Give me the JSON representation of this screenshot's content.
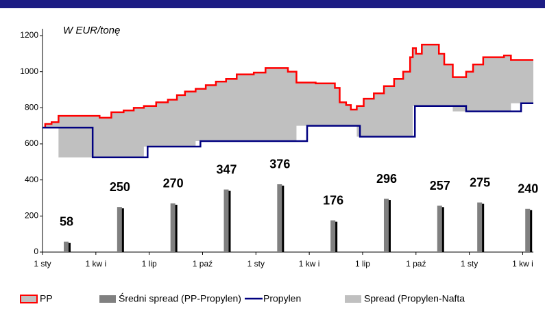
{
  "chart_data": {
    "type": "combo",
    "annotation": "W EUR/tonę",
    "xlim": [
      0,
      9.2
    ],
    "xticks": [
      {
        "value": 0,
        "label": "1 sty"
      },
      {
        "value": 1,
        "label": "1 kw i"
      },
      {
        "value": 2,
        "label": "1 lip"
      },
      {
        "value": 3,
        "label": "1 paź"
      },
      {
        "value": 4,
        "label": "1 sty"
      },
      {
        "value": 5,
        "label": "1 kw i"
      },
      {
        "value": 6,
        "label": "1 lip"
      },
      {
        "value": 7,
        "label": "1 paź"
      },
      {
        "value": 8,
        "label": "1 sty"
      },
      {
        "value": 9,
        "label": "1 kw i"
      }
    ],
    "ylim": [
      0,
      1200
    ],
    "yticks": [
      0,
      200,
      400,
      600,
      800,
      1000,
      1200
    ],
    "grid": false,
    "legend": "bottom",
    "series": [
      {
        "name": "PP",
        "type": "line",
        "drawstyle": "steps-post",
        "color": "#ff0000",
        "x": [
          0,
          0.05,
          0.17,
          0.3,
          1.07,
          1.29,
          1.52,
          1.71,
          1.9,
          2.13,
          2.35,
          2.52,
          2.67,
          2.87,
          3.06,
          3.25,
          3.44,
          3.64,
          3.96,
          4.18,
          4.6,
          4.76,
          5.12,
          5.48,
          5.57,
          5.69,
          5.78,
          5.89,
          6.02,
          6.21,
          6.4,
          6.59,
          6.76,
          6.89,
          6.94,
          7.0,
          7.11,
          7.43,
          7.53,
          7.69,
          7.94,
          8.07,
          8.26,
          8.65,
          8.78,
          9.2
        ],
        "values": [
          690,
          710,
          720,
          755,
          745,
          775,
          785,
          800,
          810,
          830,
          845,
          870,
          890,
          905,
          925,
          945,
          960,
          985,
          995,
          1020,
          1000,
          940,
          935,
          910,
          830,
          815,
          790,
          810,
          850,
          880,
          920,
          960,
          1000,
          1080,
          1130,
          1100,
          1150,
          1100,
          1040,
          970,
          1000,
          1040,
          1080,
          1090,
          1065,
          1065
        ]
      },
      {
        "name": "Średni spread (PP-Propylen)",
        "type": "bar",
        "color": "#808080",
        "x": [
          0.45,
          1.45,
          2.45,
          3.45,
          4.45,
          5.45,
          6.45,
          7.45,
          8.2,
          9.1
        ],
        "values": [
          58,
          250,
          270,
          347,
          376,
          176,
          296,
          257,
          275,
          240
        ]
      },
      {
        "name": "Propylen",
        "type": "line",
        "drawstyle": "steps-post",
        "color": "#000080",
        "x": [
          0,
          0.94,
          1.97,
          2.96,
          4.96,
          5.95,
          6.98,
          7.94,
          8.97,
          9.2
        ],
        "values": [
          690,
          525,
          585,
          615,
          700,
          640,
          810,
          780,
          825,
          825
        ]
      },
      {
        "name": "Spread (Propylen-Nafta",
        "type": "area",
        "color": "#c0c0c0",
        "fill_between": [
          0,
          2
        ]
      }
    ]
  }
}
